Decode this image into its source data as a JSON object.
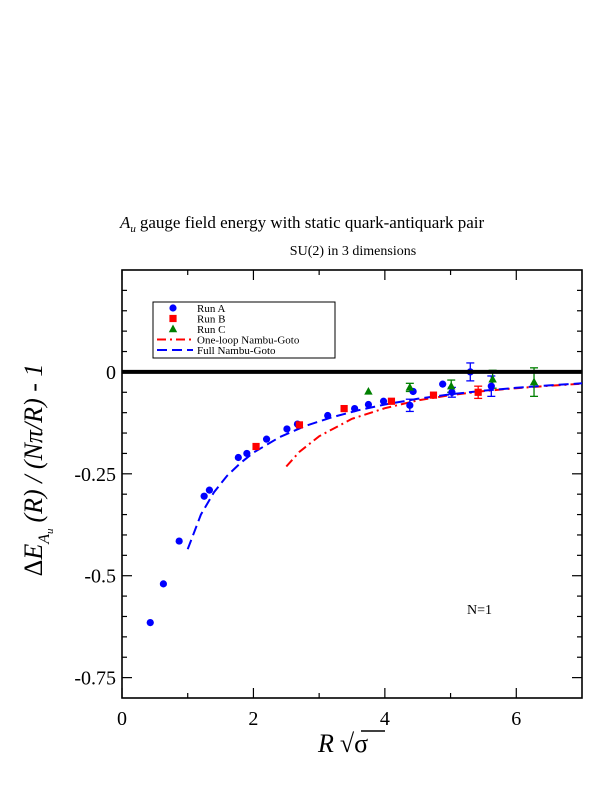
{
  "chart_data": {
    "type": "scatter",
    "title_main": "gauge field energy with static quark-antiquark pair",
    "title_symbol": "A",
    "title_symbol_sub": "u",
    "subtitle": "SU(2) in 3 dimensions",
    "ylabel_parts": {
      "delta": "Δ",
      "E": "E",
      "sub_A": "A",
      "sub_u": "u",
      "rest": "(R) / (Nπ/R) - 1"
    },
    "xlabel_parts": {
      "R": "R",
      "sqrt": "√",
      "sigma": "σ"
    },
    "annotation": "N=1",
    "xlim": [
      0,
      7
    ],
    "ylim": [
      -0.8,
      0.25
    ],
    "x_ticks": [
      {
        "value": 0,
        "label": "0"
      },
      {
        "value": 2,
        "label": "2"
      },
      {
        "value": 4,
        "label": "4"
      },
      {
        "value": 6,
        "label": "6"
      }
    ],
    "y_ticks": [
      {
        "value": 0,
        "label": "0"
      },
      {
        "value": -0.25,
        "label": "-0.25"
      },
      {
        "value": -0.5,
        "label": "-0.5"
      },
      {
        "value": -0.75,
        "label": "-0.75"
      }
    ],
    "legend_position": "top-left",
    "series": [
      {
        "name": "Run A",
        "marker": "circle",
        "color": "#0000ff",
        "points": [
          [
            0.43,
            -0.615,
            0
          ],
          [
            0.63,
            -0.52,
            0
          ],
          [
            0.87,
            -0.415,
            0
          ],
          [
            1.25,
            -0.305,
            0
          ],
          [
            1.33,
            -0.29,
            0
          ],
          [
            1.77,
            -0.21,
            0
          ],
          [
            1.9,
            -0.2,
            0
          ],
          [
            2.2,
            -0.165,
            0
          ],
          [
            2.51,
            -0.14,
            0
          ],
          [
            2.67,
            -0.128,
            0
          ],
          [
            3.13,
            -0.107,
            0
          ],
          [
            3.54,
            -0.09,
            0
          ],
          [
            3.75,
            -0.08,
            0
          ],
          [
            3.98,
            -0.072,
            0
          ],
          [
            4.38,
            -0.082,
            0.015
          ],
          [
            4.43,
            -0.048,
            0
          ],
          [
            4.88,
            -0.03,
            0
          ],
          [
            5.02,
            -0.05,
            0.012
          ],
          [
            5.3,
            0.0,
            0.022
          ],
          [
            5.62,
            -0.035,
            0.025
          ]
        ]
      },
      {
        "name": "Run B",
        "marker": "square",
        "color": "#ff0000",
        "points": [
          [
            2.04,
            -0.183,
            0
          ],
          [
            2.7,
            -0.13,
            0
          ],
          [
            3.38,
            -0.09,
            0
          ],
          [
            4.1,
            -0.072,
            0
          ],
          [
            4.74,
            -0.057,
            0
          ],
          [
            5.42,
            -0.05,
            0.015
          ]
        ]
      },
      {
        "name": "Run C",
        "marker": "triangle",
        "color": "#008000",
        "points": [
          [
            3.75,
            -0.048,
            0
          ],
          [
            4.38,
            -0.038,
            0.01
          ],
          [
            5.01,
            -0.035,
            0.015
          ],
          [
            5.64,
            -0.018,
            0.022
          ],
          [
            6.27,
            -0.025,
            0.035
          ]
        ]
      },
      {
        "name": "One-loop Nambu-Goto",
        "line": "dashdot",
        "color": "#ff0000",
        "points": [
          [
            2.5,
            -0.232
          ],
          [
            2.7,
            -0.196
          ],
          [
            3.0,
            -0.158
          ],
          [
            3.5,
            -0.115
          ],
          [
            4.0,
            -0.089
          ],
          [
            4.5,
            -0.07
          ],
          [
            5.0,
            -0.057
          ],
          [
            5.5,
            -0.047
          ],
          [
            6.0,
            -0.04
          ],
          [
            6.5,
            -0.034
          ],
          [
            7.0,
            -0.029
          ]
        ]
      },
      {
        "name": "Full Nambu-Goto",
        "line": "dash",
        "color": "#0000ff",
        "points": [
          [
            1.0,
            -0.435
          ],
          [
            1.2,
            -0.35
          ],
          [
            1.4,
            -0.295
          ],
          [
            1.6,
            -0.255
          ],
          [
            1.8,
            -0.224
          ],
          [
            2.0,
            -0.198
          ],
          [
            2.4,
            -0.16
          ],
          [
            2.8,
            -0.132
          ],
          [
            3.2,
            -0.111
          ],
          [
            3.6,
            -0.094
          ],
          [
            4.0,
            -0.08
          ],
          [
            4.5,
            -0.066
          ],
          [
            5.0,
            -0.055
          ],
          [
            5.5,
            -0.046
          ],
          [
            6.0,
            -0.039
          ],
          [
            6.5,
            -0.033
          ],
          [
            7.0,
            -0.028
          ]
        ]
      }
    ]
  }
}
